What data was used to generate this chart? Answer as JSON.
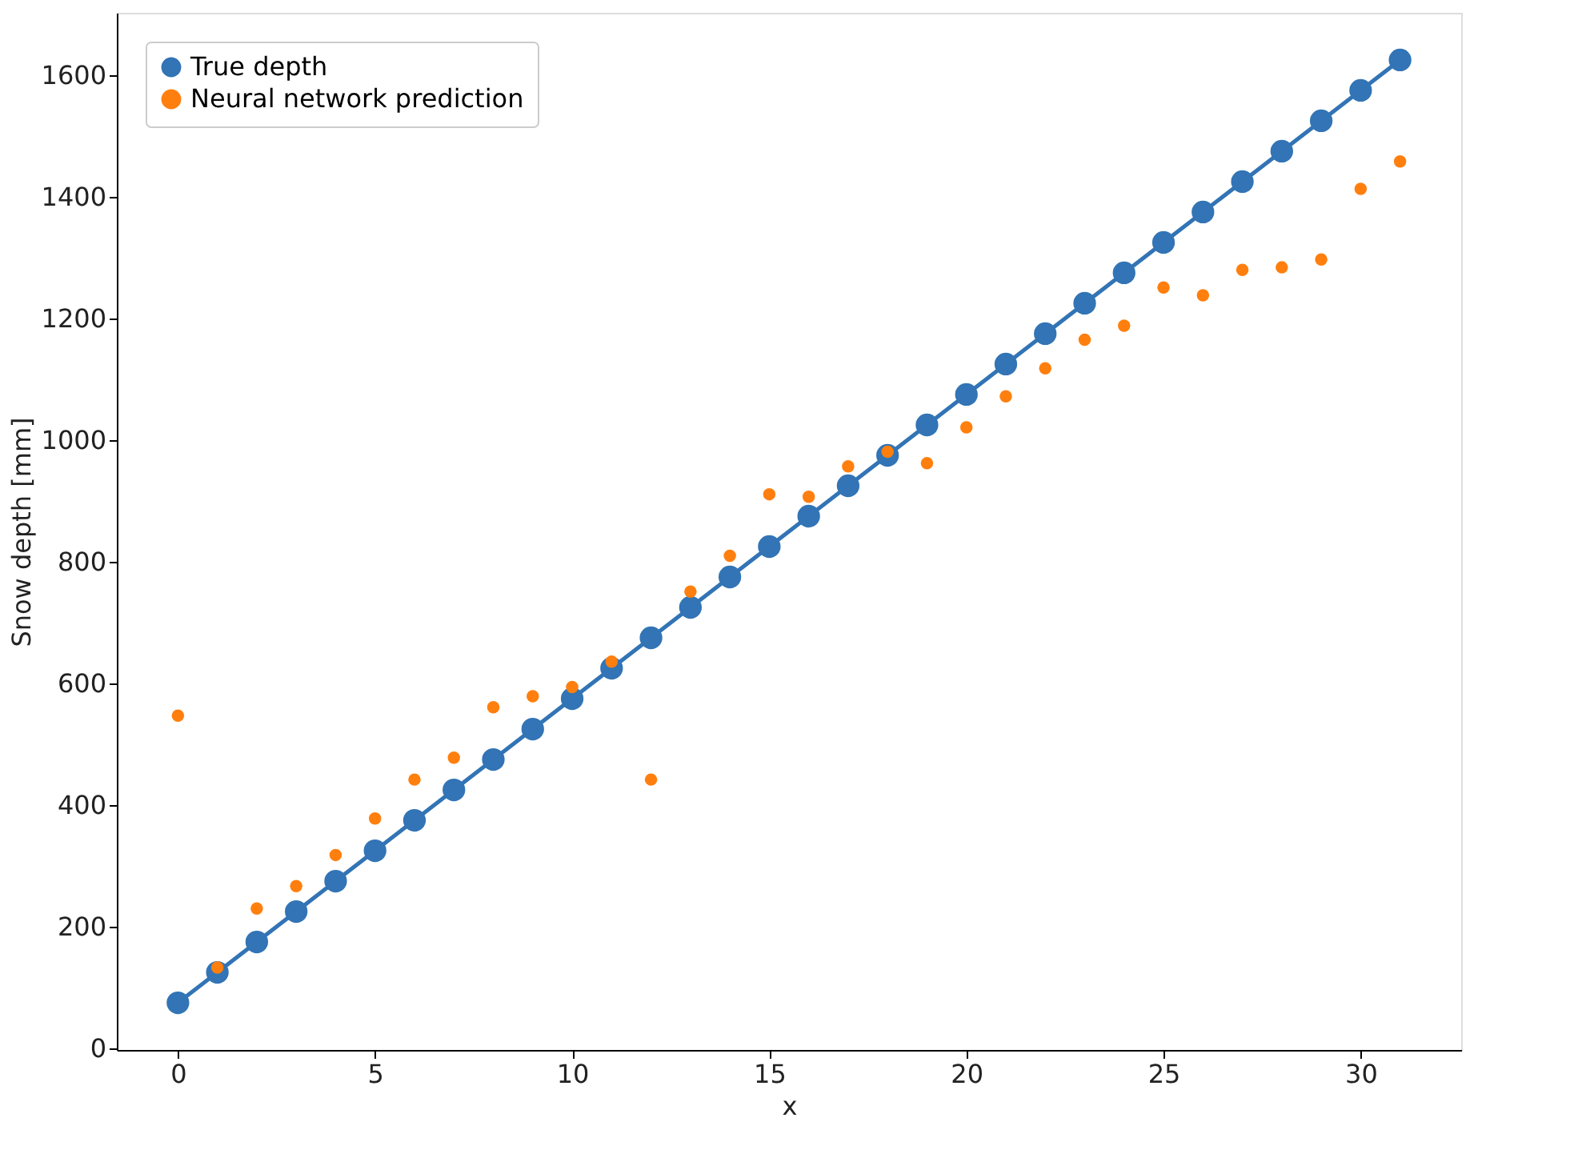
{
  "chart_data": {
    "type": "line",
    "xlabel": "x",
    "ylabel": "Snow depth [mm]",
    "x": [
      0,
      1,
      2,
      3,
      4,
      5,
      6,
      7,
      8,
      9,
      10,
      11,
      12,
      13,
      14,
      15,
      16,
      17,
      18,
      19,
      20,
      21,
      22,
      23,
      24,
      25,
      26,
      27,
      28,
      29,
      30,
      31
    ],
    "series": [
      {
        "name": "True depth",
        "line_style": "solid",
        "marker": "circle",
        "color": "#3274b5",
        "values": [
          75,
          125,
          175,
          225,
          275,
          325,
          375,
          425,
          475,
          525,
          575,
          625,
          675,
          725,
          775,
          825,
          875,
          925,
          975,
          1025,
          1075,
          1125,
          1175,
          1225,
          1275,
          1325,
          1375,
          1425,
          1475,
          1525,
          1575,
          1625
        ]
      },
      {
        "name": "Neural network prediction",
        "type": "scatter",
        "marker": "circle",
        "color": "#ff7f0e",
        "values": [
          547,
          133,
          230,
          267,
          318,
          378,
          442,
          478,
          561,
          579,
          594,
          636,
          442,
          751,
          810,
          911,
          907,
          957,
          981,
          962,
          1021,
          1072,
          1118,
          1165,
          1188,
          1251,
          1238,
          1280,
          1284,
          1297,
          1413,
          1458
        ]
      }
    ],
    "xlim": [
      -1.55,
      32.55
    ],
    "xticks": [
      0,
      5,
      10,
      15,
      20,
      25,
      30
    ],
    "ylim": [
      -2.5,
      1702.5
    ],
    "yticks": [
      0,
      200,
      400,
      600,
      800,
      1000,
      1200,
      1400,
      1600
    ],
    "grid": false,
    "legend": "top left"
  }
}
